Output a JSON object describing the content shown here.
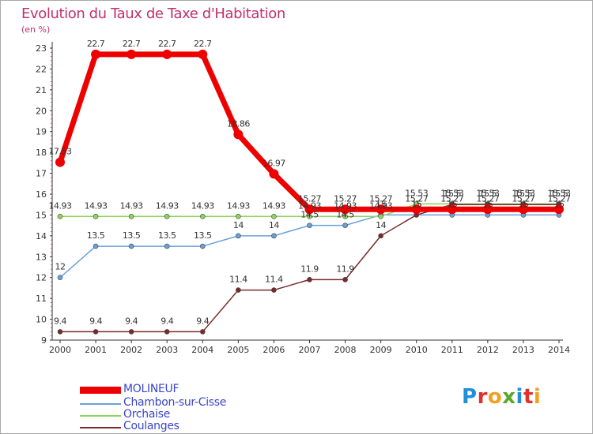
{
  "title": "Evolution du Taux de Taxe d'Habitation",
  "unit": "(en %)",
  "logo": {
    "text": "Proxiti",
    "colors": [
      "#1e90d6",
      "#e0302a",
      "#f0a020",
      "#5aa829",
      "#1e90d6",
      "#e0302a",
      "#f0a020"
    ]
  },
  "chart_data": {
    "type": "line",
    "title": "Evolution du Taux de Taxe d'Habitation",
    "ylabel": "(en %)",
    "xlabel": "",
    "x": [
      "2000",
      "2001",
      "2002",
      "2003",
      "2004",
      "2005",
      "2006",
      "2007",
      "2008",
      "2009",
      "2010",
      "2011",
      "2012",
      "2013",
      "2014"
    ],
    "ylim": [
      9,
      23
    ],
    "yticks": [
      "9",
      "10",
      "11",
      "12",
      "13",
      "14",
      "15",
      "16",
      "17",
      "18",
      "19",
      "20",
      "21",
      "22",
      "23"
    ],
    "grid": false,
    "series": [
      {
        "name": "MOLINEUF",
        "color": "#ee0000",
        "values": [
          17.53,
          22.7,
          22.7,
          22.7,
          22.7,
          18.86,
          16.97,
          15.27,
          15.27,
          15.27,
          15.27,
          15.27,
          15.27,
          15.27,
          15.27
        ],
        "labels": [
          "17.53",
          "22.7",
          "22.7",
          "22.7",
          "22.7",
          "18.86",
          "16.97",
          "15.27",
          "15.27",
          "15.27",
          "15.27",
          "15.27",
          "15.27",
          "15.27",
          "15.27"
        ]
      },
      {
        "name": "Chambon-sur-Cisse",
        "color": "#6aa0d8",
        "values": [
          12,
          13.5,
          13.5,
          13.5,
          13.5,
          14,
          14,
          14.5,
          14.5,
          15,
          15,
          15,
          15,
          15,
          15
        ],
        "labels": [
          "12",
          "13.5",
          "13.5",
          "13.5",
          "13.5",
          "14",
          "14",
          "14.5",
          "14.5",
          "15",
          "15",
          "15",
          "15",
          "15",
          "15"
        ]
      },
      {
        "name": "Orchaise",
        "color": "#8fd45a",
        "values": [
          14.93,
          14.93,
          14.93,
          14.93,
          14.93,
          14.93,
          14.93,
          14.93,
          14.93,
          14.93,
          15.53,
          15.53,
          15.53,
          15.53,
          15.53
        ],
        "labels": [
          "14.93",
          "14.93",
          "14.93",
          "14.93",
          "14.93",
          "14.93",
          "14.93",
          "14.93",
          "14.93",
          "14.93",
          "15.53",
          "15.53",
          "15.53",
          "15.53",
          "15.53"
        ]
      },
      {
        "name": "Coulanges",
        "color": "#7a2a2a",
        "values": [
          9.4,
          9.4,
          9.4,
          9.4,
          9.4,
          11.4,
          11.4,
          11.9,
          11.9,
          14,
          15,
          15.5,
          15.5,
          15.5,
          15.5
        ],
        "labels": [
          "9.4",
          "9.4",
          "9.4",
          "9.4",
          "9.4",
          "11.4",
          "11.4",
          "11.9",
          "11.9",
          "14",
          "15",
          "15.5",
          "15.5",
          "15.5",
          "15.5"
        ]
      }
    ]
  }
}
